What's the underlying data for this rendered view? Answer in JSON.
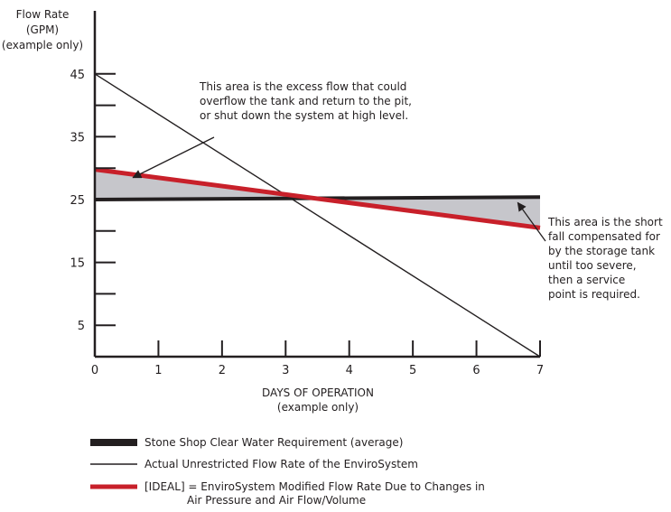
{
  "chart_data": {
    "type": "line",
    "ylabel_lines": [
      "Flow Rate",
      "(GPM)",
      "(example only)"
    ],
    "xlabel_lines": [
      "DAYS OF OPERATION",
      "(example only)"
    ],
    "xlim": [
      0,
      7
    ],
    "ylim": [
      0,
      50
    ],
    "x_ticks": [
      0,
      1,
      2,
      3,
      4,
      5,
      6,
      7
    ],
    "x_tick_labels": [
      "0",
      "1",
      "2",
      "3",
      "4",
      "5",
      "6",
      "7"
    ],
    "y_ticks": [
      5,
      10,
      15,
      20,
      25,
      30,
      35,
      40,
      45
    ],
    "y_tick_labels": [
      "5",
      "",
      "15",
      "",
      "25",
      "",
      "35",
      "",
      "45"
    ],
    "grid": false,
    "series": [
      {
        "name": "Stone Shop Clear Water Requirement (average)",
        "x": [
          0,
          7
        ],
        "y": [
          25,
          25.4
        ],
        "color": "#231f20"
      },
      {
        "name": "Actual Unrestricted Flow Rate of the EnviroSystem",
        "x": [
          0,
          7
        ],
        "y": [
          45,
          0
        ],
        "color": "#231f20"
      },
      {
        "name": "[IDEAL] = EnviroSystem Modified Flow Rate Due to Changes in Air Pressure and Air Flow/Volume",
        "x": [
          0,
          7
        ],
        "y": [
          29.8,
          20.5
        ],
        "color": "#c8202a"
      }
    ],
    "shaded_fill": "#c6c6cb",
    "annotations": [
      {
        "lines": [
          "This area is the excess flow that could",
          "overflow the tank and return to the pit,",
          "or shut down the system at high level."
        ],
        "arrow_to": [
          0.6,
          28.5
        ]
      },
      {
        "lines": [
          "This area is the short",
          "fall compensated for",
          "by the storage tank",
          "until too severe,",
          "then a service",
          "point is required."
        ],
        "arrow_to": [
          6.65,
          24.5
        ]
      }
    ],
    "legend": {
      "position": "bottom-left",
      "entries": [
        {
          "style": "thick",
          "color": "#231f20",
          "lines": [
            "Stone Shop Clear Water Requirement (average)"
          ]
        },
        {
          "style": "thin",
          "color": "#231f20",
          "lines": [
            "Actual Unrestricted Flow Rate of the EnviroSystem"
          ]
        },
        {
          "style": "red",
          "color": "#c8202a",
          "lines": [
            "[IDEAL] = EnviroSystem Modified Flow Rate Due to Changes in",
            "Air Pressure and Air Flow/Volume"
          ]
        }
      ]
    }
  }
}
